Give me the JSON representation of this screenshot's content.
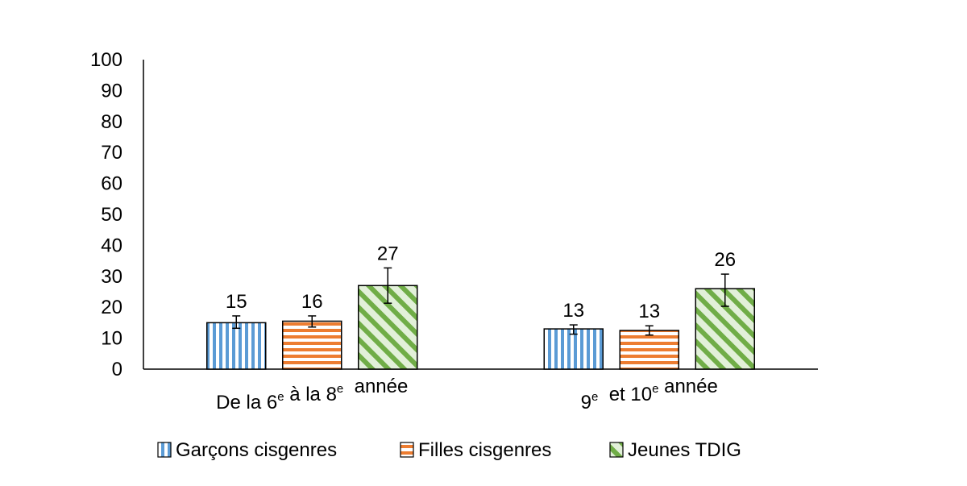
{
  "chart_data": {
    "type": "bar",
    "title": "",
    "xlabel": "",
    "ylabel": "",
    "ylim": [
      0,
      100
    ],
    "yticks": [
      0,
      10,
      20,
      30,
      40,
      50,
      60,
      70,
      80,
      90,
      100
    ],
    "categories": [
      {
        "parts": [
          {
            "t": "De la 6"
          },
          {
            "t": "e",
            "sup": true
          },
          {
            "t": " à la 8"
          },
          {
            "t": "e",
            "sup": true
          },
          {
            "t": "  année"
          }
        ]
      },
      {
        "parts": [
          {
            "t": "9"
          },
          {
            "t": "e",
            "sup": true
          },
          {
            "t": "  et 10"
          },
          {
            "t": "e",
            "sup": true
          },
          {
            "t": " année"
          }
        ]
      }
    ],
    "series": [
      {
        "name": "Garçons cisgenres",
        "pattern": "vertical-stripes",
        "color": "#5b9bd5",
        "values": [
          15,
          13
        ],
        "value_labels": [
          "15",
          "13"
        ],
        "error_low": [
          13.2,
          11.3
        ],
        "error_high": [
          17.2,
          14.3
        ]
      },
      {
        "name": "Filles cisgenres",
        "pattern": "horizontal-stripes",
        "color": "#ed7d31",
        "values": [
          15.5,
          12.5
        ],
        "value_labels": [
          "16",
          "13"
        ],
        "error_low": [
          13.6,
          11.0
        ],
        "error_high": [
          17.2,
          14.0
        ]
      },
      {
        "name": "Jeunes TDIG",
        "pattern": "diagonal-stripes",
        "color": "#70ad47",
        "values": [
          27,
          26
        ],
        "value_labels": [
          "27",
          "26"
        ],
        "error_low": [
          21.3,
          20.3
        ],
        "error_high": [
          32.7,
          30.7
        ]
      }
    ],
    "grid": false,
    "legend": "bottom"
  }
}
